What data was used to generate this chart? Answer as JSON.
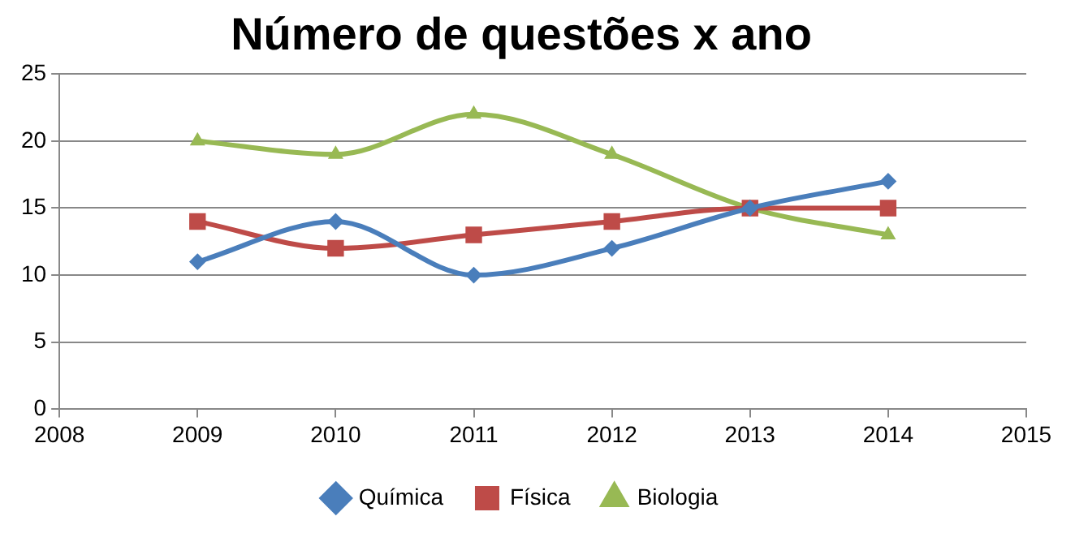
{
  "chart_data": {
    "type": "line",
    "title": "Número de questões x ano",
    "x": [
      2009,
      2010,
      2011,
      2012,
      2013,
      2014
    ],
    "series": [
      {
        "name": "Química",
        "color": "#4a7ebb",
        "marker": "diamond",
        "values": [
          11,
          14,
          10,
          12,
          15,
          17
        ]
      },
      {
        "name": "Física",
        "color": "#be4b48",
        "marker": "square",
        "values": [
          14,
          12,
          13,
          14,
          15,
          15
        ]
      },
      {
        "name": "Biologia",
        "color": "#98b954",
        "marker": "triangle",
        "values": [
          20,
          19,
          22,
          19,
          15,
          13
        ]
      }
    ],
    "xlim": [
      2008,
      2015
    ],
    "xticks": [
      2008,
      2009,
      2010,
      2011,
      2012,
      2013,
      2014,
      2015
    ],
    "ylim": [
      0,
      25
    ],
    "yticks": [
      0,
      5,
      10,
      15,
      20,
      25
    ],
    "grid": "y",
    "legend": "bottom"
  }
}
